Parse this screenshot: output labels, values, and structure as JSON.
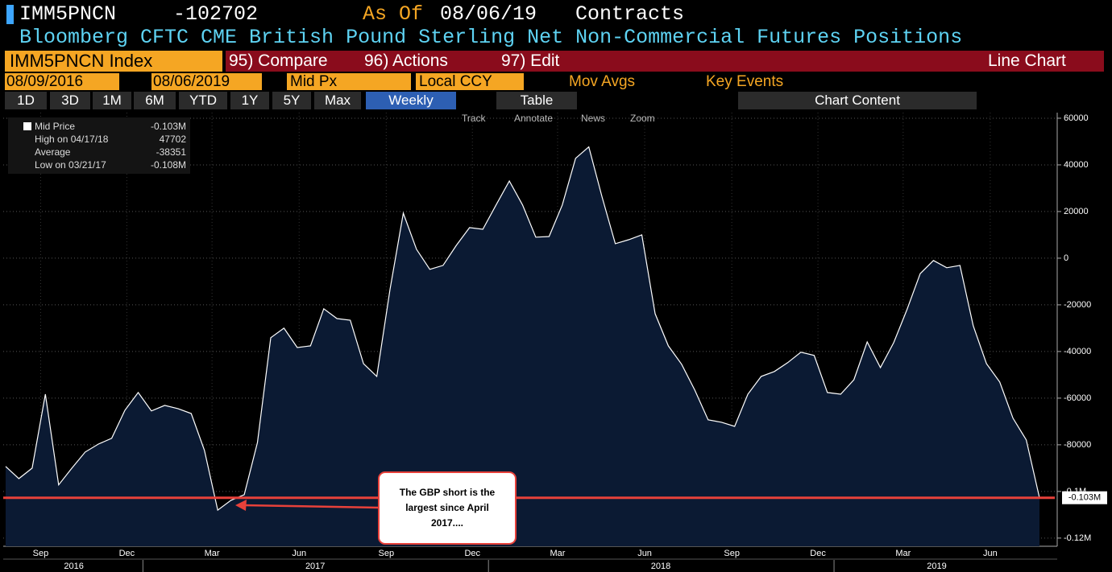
{
  "header": {
    "ticker": "IMM5PNCN",
    "last": "-102702",
    "as_of_label": "As Of",
    "as_of": "08/06/19",
    "units": "Contracts",
    "description": "Bloomberg CFTC CME British Pound Sterling Net Non-Commercial Futures Positions"
  },
  "toolbar": {
    "security": "IMM5PNCN Index",
    "menus": [
      "95) Compare",
      "96) Actions",
      "97) Edit"
    ],
    "view": "Line Chart"
  },
  "settings": {
    "start": "08/09/2016",
    "end": "08/06/2019",
    "field": "Mid Px",
    "currency": "Local CCY",
    "options": [
      "Mov Avgs",
      "Key Events"
    ]
  },
  "ranges": {
    "buttons": [
      "1D",
      "3D",
      "1M",
      "6M",
      "YTD",
      "1Y",
      "5Y",
      "Max"
    ],
    "frequency": "Weekly",
    "table": "Table",
    "content": "Chart Content"
  },
  "tools": [
    "Track",
    "Annotate",
    "News",
    "Zoom"
  ],
  "chart_data": {
    "type": "area",
    "stats": [
      {
        "label": "Mid Price",
        "value": "-0.103M"
      },
      {
        "label": "High on 04/17/18",
        "value": 47702
      },
      {
        "label": "Average",
        "value": -38351
      },
      {
        "label": "Low on 03/21/17",
        "value": "-0.108M"
      }
    ],
    "x": [
      "2016-08-09",
      "2016-08-23",
      "2016-09-06",
      "2016-09-20",
      "2016-10-04",
      "2016-10-18",
      "2016-11-01",
      "2016-11-15",
      "2016-11-29",
      "2016-12-13",
      "2016-12-27",
      "2017-01-10",
      "2017-01-24",
      "2017-02-07",
      "2017-02-21",
      "2017-03-07",
      "2017-03-21",
      "2017-04-04",
      "2017-04-18",
      "2017-05-02",
      "2017-05-16",
      "2017-05-30",
      "2017-06-13",
      "2017-06-27",
      "2017-07-11",
      "2017-07-25",
      "2017-08-08",
      "2017-08-22",
      "2017-09-05",
      "2017-09-19",
      "2017-10-03",
      "2017-10-17",
      "2017-10-31",
      "2017-11-14",
      "2017-11-28",
      "2017-12-12",
      "2017-12-26",
      "2018-01-09",
      "2018-01-23",
      "2018-02-06",
      "2018-02-20",
      "2018-03-06",
      "2018-03-20",
      "2018-04-03",
      "2018-04-17",
      "2018-05-01",
      "2018-05-15",
      "2018-05-29",
      "2018-06-12",
      "2018-06-26",
      "2018-07-10",
      "2018-07-24",
      "2018-08-07",
      "2018-08-21",
      "2018-09-04",
      "2018-09-18",
      "2018-10-02",
      "2018-10-16",
      "2018-10-30",
      "2018-11-13",
      "2018-11-27",
      "2018-12-11",
      "2018-12-25",
      "2019-01-08",
      "2019-01-22",
      "2019-02-05",
      "2019-02-19",
      "2019-03-05",
      "2019-03-19",
      "2019-04-02",
      "2019-04-16",
      "2019-04-30",
      "2019-05-14",
      "2019-05-28",
      "2019-06-11",
      "2019-06-25",
      "2019-07-09",
      "2019-07-23",
      "2019-08-06"
    ],
    "series": [
      {
        "name": "Mid Price",
        "color": "#ffffff",
        "fill": "#0b1a33",
        "values": [
          -89300,
          -94500,
          -90000,
          -58300,
          -97200,
          -90000,
          -83100,
          -79700,
          -77200,
          -65200,
          -57600,
          -65500,
          -63100,
          -64500,
          -66600,
          -82400,
          -108000,
          -103800,
          -101400,
          -79000,
          -34100,
          -30000,
          -38300,
          -37600,
          -21700,
          -25900,
          -26600,
          -45200,
          -50700,
          -13400,
          19300,
          3800,
          -4800,
          -3100,
          5500,
          13100,
          12400,
          22800,
          33100,
          22800,
          9000,
          9300,
          22800,
          42800,
          47702,
          26200,
          6200,
          7900,
          10000,
          -23800,
          -37600,
          -45500,
          -56600,
          -69300,
          -70300,
          -72100,
          -58300,
          -50700,
          -48600,
          -44800,
          -40300,
          -41700,
          -57600,
          -58300,
          -52100,
          -35900,
          -46900,
          -36200,
          -22100,
          -6600,
          -1000,
          -4100,
          -3100,
          -29000,
          -45200,
          -53100,
          -68600,
          -77900,
          -102702
        ]
      }
    ],
    "ylim": [
      -123500,
      62400
    ],
    "yticks": [
      60000,
      40000,
      20000,
      0,
      -20000,
      -40000,
      -60000,
      -80000,
      {
        "value": -100000,
        "label": "-0.1M"
      },
      {
        "value": -120000,
        "label": "-0.12M"
      }
    ],
    "xticks": [
      {
        "value": "2016-09",
        "label": "Sep"
      },
      {
        "value": "2016-12",
        "label": "Dec"
      },
      {
        "value": "2017-03",
        "label": "Mar"
      },
      {
        "value": "2017-06",
        "label": "Jun"
      },
      {
        "value": "2017-09",
        "label": "Sep"
      },
      {
        "value": "2017-12",
        "label": "Dec"
      },
      {
        "value": "2018-03",
        "label": "Mar"
      },
      {
        "value": "2018-06",
        "label": "Jun"
      },
      {
        "value": "2018-09",
        "label": "Sep"
      },
      {
        "value": "2018-12",
        "label": "Dec"
      },
      {
        "value": "2019-03",
        "label": "Mar"
      },
      {
        "value": "2019-06",
        "label": "Jun"
      }
    ],
    "years": [
      "2016",
      "2017",
      "2018",
      "2019"
    ],
    "grid": true,
    "hline": {
      "value": -102702,
      "color": "#e8413a"
    },
    "annotation": {
      "lines": [
        "The GBP short is the",
        "largest since April",
        "2017...."
      ]
    }
  }
}
